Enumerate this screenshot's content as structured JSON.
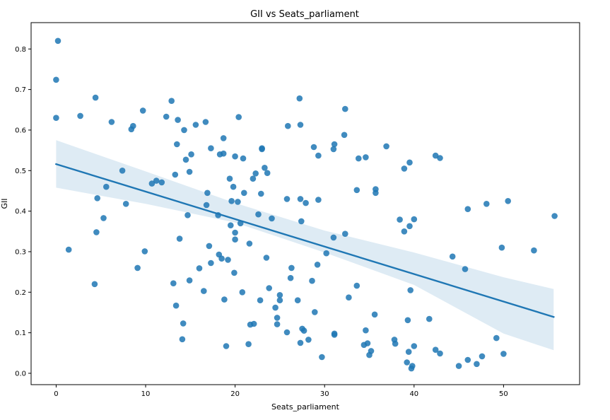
{
  "chart_data": {
    "type": "scatter",
    "title": "GII vs Seats_parliament",
    "xlabel": "Seats_parliament",
    "ylabel": "GII",
    "xlim": [
      -2.8,
      58.5
    ],
    "ylim": [
      -0.028,
      0.865
    ],
    "xticks": [
      0,
      10,
      20,
      30,
      40,
      50
    ],
    "yticks": [
      0.0,
      0.1,
      0.2,
      0.3,
      0.4,
      0.5,
      0.6,
      0.7,
      0.8
    ],
    "grid": false,
    "colors": {
      "points": "#1f77b4",
      "line": "#1f77b4",
      "band": "#1f77b4"
    },
    "regression": {
      "x_start": 0,
      "x_end": 55.6,
      "y_start": 0.516,
      "y_end": 0.139
    },
    "confidence_band": {
      "x": [
        0,
        10,
        20,
        30,
        40,
        50,
        55.6
      ],
      "upper": [
        0.575,
        0.498,
        0.42,
        0.352,
        0.298,
        0.237,
        0.208
      ],
      "lower": [
        0.458,
        0.418,
        0.372,
        0.298,
        0.218,
        0.098,
        0.057
      ]
    },
    "points": [
      [
        0.2,
        0.82
      ],
      [
        0.0,
        0.724
      ],
      [
        0.0,
        0.63
      ],
      [
        1.4,
        0.305
      ],
      [
        2.7,
        0.635
      ],
      [
        4.3,
        0.22
      ],
      [
        4.4,
        0.68
      ],
      [
        4.5,
        0.348
      ],
      [
        4.6,
        0.432
      ],
      [
        5.3,
        0.383
      ],
      [
        5.6,
        0.46
      ],
      [
        6.2,
        0.62
      ],
      [
        7.4,
        0.5
      ],
      [
        7.8,
        0.418
      ],
      [
        8.4,
        0.602
      ],
      [
        8.6,
        0.61
      ],
      [
        9.1,
        0.26
      ],
      [
        9.7,
        0.648
      ],
      [
        9.9,
        0.301
      ],
      [
        10.7,
        0.468
      ],
      [
        11.2,
        0.475
      ],
      [
        11.8,
        0.471
      ],
      [
        12.3,
        0.633
      ],
      [
        12.9,
        0.672
      ],
      [
        13.1,
        0.222
      ],
      [
        13.3,
        0.49
      ],
      [
        13.4,
        0.167
      ],
      [
        13.5,
        0.565
      ],
      [
        13.6,
        0.625
      ],
      [
        13.8,
        0.332
      ],
      [
        14.1,
        0.084
      ],
      [
        14.2,
        0.123
      ],
      [
        14.3,
        0.6
      ],
      [
        14.5,
        0.527
      ],
      [
        14.7,
        0.39
      ],
      [
        14.9,
        0.229
      ],
      [
        14.9,
        0.497
      ],
      [
        15.1,
        0.54
      ],
      [
        15.6,
        0.613
      ],
      [
        16.0,
        0.259
      ],
      [
        16.5,
        0.203
      ],
      [
        16.7,
        0.62
      ],
      [
        16.8,
        0.415
      ],
      [
        16.9,
        0.445
      ],
      [
        17.1,
        0.314
      ],
      [
        17.3,
        0.272
      ],
      [
        17.3,
        0.555
      ],
      [
        18.1,
        0.39
      ],
      [
        18.2,
        0.293
      ],
      [
        18.3,
        0.54
      ],
      [
        18.5,
        0.283
      ],
      [
        18.7,
        0.542
      ],
      [
        18.7,
        0.58
      ],
      [
        18.8,
        0.182
      ],
      [
        19.0,
        0.067
      ],
      [
        19.2,
        0.28
      ],
      [
        19.4,
        0.48
      ],
      [
        19.5,
        0.365
      ],
      [
        19.6,
        0.425
      ],
      [
        19.8,
        0.46
      ],
      [
        19.9,
        0.248
      ],
      [
        20.0,
        0.535
      ],
      [
        20.0,
        0.33
      ],
      [
        20.0,
        0.347
      ],
      [
        20.3,
        0.423
      ],
      [
        20.4,
        0.632
      ],
      [
        20.6,
        0.37
      ],
      [
        20.8,
        0.2
      ],
      [
        20.9,
        0.53
      ],
      [
        21.0,
        0.445
      ],
      [
        21.5,
        0.072
      ],
      [
        21.6,
        0.32
      ],
      [
        21.7,
        0.12
      ],
      [
        22.0,
        0.48
      ],
      [
        22.1,
        0.122
      ],
      [
        22.3,
        0.493
      ],
      [
        22.6,
        0.392
      ],
      [
        22.8,
        0.18
      ],
      [
        22.9,
        0.443
      ],
      [
        23.0,
        0.555
      ],
      [
        23.0,
        0.553
      ],
      [
        23.3,
        0.507
      ],
      [
        23.5,
        0.285
      ],
      [
        23.6,
        0.494
      ],
      [
        23.8,
        0.21
      ],
      [
        24.1,
        0.382
      ],
      [
        24.5,
        0.162
      ],
      [
        24.7,
        0.137
      ],
      [
        24.7,
        0.121
      ],
      [
        25.0,
        0.193
      ],
      [
        25.0,
        0.18
      ],
      [
        25.8,
        0.101
      ],
      [
        25.8,
        0.43
      ],
      [
        25.9,
        0.61
      ],
      [
        26.2,
        0.235
      ],
      [
        26.3,
        0.26
      ],
      [
        27.0,
        0.18
      ],
      [
        27.2,
        0.678
      ],
      [
        27.3,
        0.613
      ],
      [
        27.3,
        0.43
      ],
      [
        27.3,
        0.075
      ],
      [
        27.4,
        0.375
      ],
      [
        27.5,
        0.11
      ],
      [
        27.7,
        0.105
      ],
      [
        27.9,
        0.42
      ],
      [
        28.2,
        0.083
      ],
      [
        28.6,
        0.228
      ],
      [
        28.8,
        0.558
      ],
      [
        28.9,
        0.151
      ],
      [
        29.2,
        0.268
      ],
      [
        29.3,
        0.428
      ],
      [
        29.3,
        0.537
      ],
      [
        29.7,
        0.04
      ],
      [
        30.2,
        0.296
      ],
      [
        31.0,
        0.335
      ],
      [
        31.0,
        0.553
      ],
      [
        31.1,
        0.565
      ],
      [
        31.1,
        0.098
      ],
      [
        31.1,
        0.095
      ],
      [
        32.2,
        0.588
      ],
      [
        32.3,
        0.652
      ],
      [
        32.3,
        0.344
      ],
      [
        32.7,
        0.187
      ],
      [
        33.6,
        0.452
      ],
      [
        33.6,
        0.216
      ],
      [
        33.8,
        0.53
      ],
      [
        34.4,
        0.07
      ],
      [
        34.6,
        0.533
      ],
      [
        34.6,
        0.106
      ],
      [
        34.8,
        0.074
      ],
      [
        35.0,
        0.045
      ],
      [
        35.2,
        0.055
      ],
      [
        35.6,
        0.145
      ],
      [
        35.7,
        0.445
      ],
      [
        35.7,
        0.454
      ],
      [
        36.9,
        0.56
      ],
      [
        37.8,
        0.083
      ],
      [
        37.9,
        0.073
      ],
      [
        38.4,
        0.379
      ],
      [
        38.9,
        0.35
      ],
      [
        38.9,
        0.505
      ],
      [
        39.2,
        0.027
      ],
      [
        39.3,
        0.131
      ],
      [
        39.4,
        0.053
      ],
      [
        39.5,
        0.363
      ],
      [
        39.5,
        0.52
      ],
      [
        39.6,
        0.205
      ],
      [
        39.7,
        0.012
      ],
      [
        39.8,
        0.018
      ],
      [
        40.0,
        0.38
      ],
      [
        40.0,
        0.067
      ],
      [
        41.7,
        0.134
      ],
      [
        42.4,
        0.537
      ],
      [
        42.4,
        0.058
      ],
      [
        42.9,
        0.531
      ],
      [
        42.9,
        0.049
      ],
      [
        44.3,
        0.288
      ],
      [
        45.0,
        0.018
      ],
      [
        45.7,
        0.257
      ],
      [
        46.0,
        0.405
      ],
      [
        46.0,
        0.033
      ],
      [
        47.0,
        0.023
      ],
      [
        47.6,
        0.042
      ],
      [
        48.1,
        0.418
      ],
      [
        49.2,
        0.087
      ],
      [
        49.8,
        0.31
      ],
      [
        50.0,
        0.048
      ],
      [
        50.5,
        0.425
      ],
      [
        53.4,
        0.303
      ],
      [
        55.7,
        0.388
      ]
    ]
  }
}
